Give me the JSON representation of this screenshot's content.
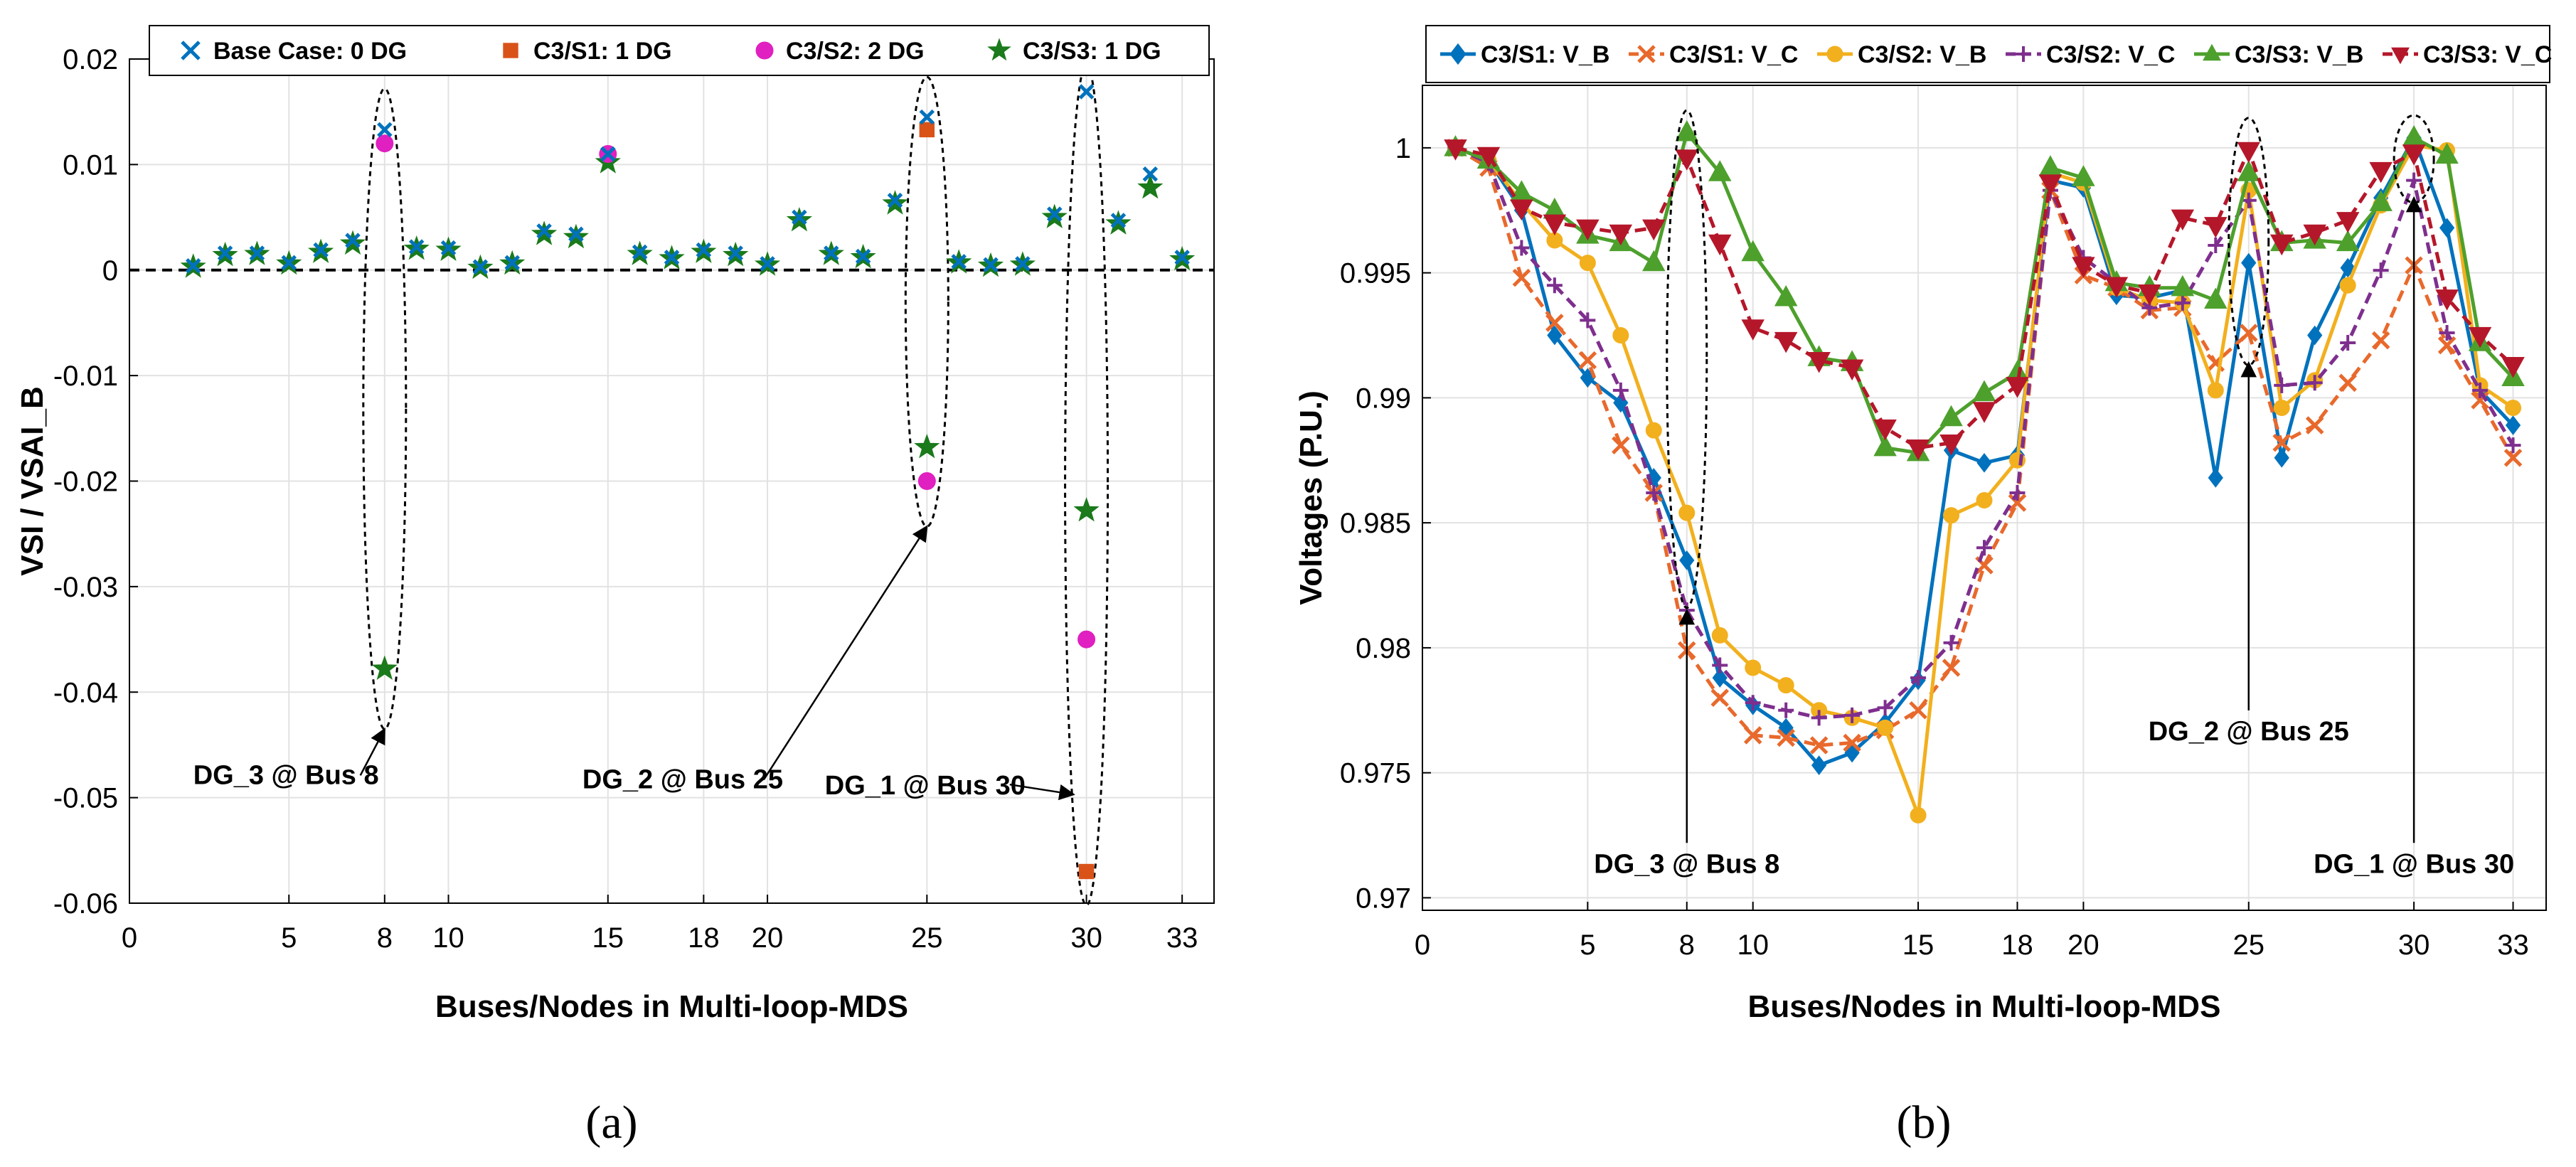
{
  "chart_data": [
    {
      "type": "scatter",
      "panel_caption": "(a)",
      "title": "",
      "xlabel": "Buses/Nodes in Multi-loop-MDS",
      "ylabel": "VSI / VSAI_B",
      "xlim": [
        0,
        34
      ],
      "ylim": [
        -0.06,
        0.02
      ],
      "xticks": [
        0,
        5,
        8,
        10,
        15,
        18,
        20,
        25,
        30,
        33
      ],
      "yticks": [
        -0.06,
        -0.05,
        -0.04,
        -0.03,
        -0.02,
        -0.01,
        0,
        0.01,
        0.02
      ],
      "ytick_labels": [
        "-0.06",
        "-0.05",
        "-0.04",
        "-0.03",
        "-0.02",
        "-0.01",
        "0",
        "0.01",
        "0.02"
      ],
      "grid": true,
      "legend_position": "top",
      "zero_line": true,
      "series": [
        {
          "name": "Base Case: 0 DG",
          "color": "#0072BD",
          "marker": "x",
          "x": [
            2,
            3,
            4,
            5,
            6,
            7,
            8,
            9,
            10,
            11,
            12,
            13,
            14,
            15,
            16,
            17,
            18,
            19,
            20,
            21,
            22,
            23,
            24,
            25,
            26,
            27,
            28,
            29,
            30,
            31,
            32,
            33
          ],
          "y": [
            0.0004,
            0.0016,
            0.0016,
            0.0007,
            0.0019,
            0.0028,
            0.0133,
            0.0022,
            0.0021,
            0.0003,
            0.0007,
            0.0037,
            0.0034,
            0.011,
            0.0017,
            0.0012,
            0.0019,
            0.0016,
            0.0006,
            0.005,
            0.0016,
            0.0013,
            0.0066,
            0.0145,
            0.0008,
            0.0005,
            0.0006,
            0.0053,
            0.0169,
            0.0047,
            0.0091,
            0.0012
          ]
        },
        {
          "name": "C3/S1: 1 DG",
          "color": "#D95319",
          "marker": "square",
          "x": [
            25,
            30
          ],
          "y": [
            0.0133,
            -0.057
          ]
        },
        {
          "name": "C3/S2: 2 DG",
          "color": "#E020C0",
          "marker": "circle",
          "x": [
            8,
            15,
            25,
            30
          ],
          "y": [
            0.012,
            0.011,
            -0.02,
            -0.035
          ]
        },
        {
          "name": "C3/S3: 1 DG",
          "color": "#1B7A1B",
          "marker": "star",
          "x": [
            2,
            3,
            4,
            5,
            6,
            7,
            8,
            9,
            10,
            11,
            12,
            13,
            14,
            15,
            16,
            17,
            18,
            19,
            20,
            21,
            22,
            23,
            24,
            25,
            26,
            27,
            28,
            29,
            30,
            31,
            32,
            33
          ],
          "y": [
            0.0003,
            0.0014,
            0.0015,
            0.0006,
            0.0017,
            0.0025,
            -0.0378,
            0.002,
            0.0019,
            0.0002,
            0.0006,
            0.0034,
            0.0031,
            0.0102,
            0.0015,
            0.0011,
            0.0017,
            0.0014,
            0.0005,
            0.0047,
            0.0015,
            0.0012,
            0.0063,
            -0.0168,
            0.0007,
            0.0004,
            0.0005,
            0.005,
            -0.0228,
            0.0044,
            0.0078,
            0.001
          ]
        }
      ],
      "annotations": [
        {
          "text": "DG_3 @ Bus 8",
          "target_x": 8,
          "target_y": -0.0435,
          "label_x": 2.0,
          "label_y": -0.0487
        },
        {
          "text": "DG_2 @ Bus 25",
          "target_x": 25,
          "target_y": -0.0243,
          "label_x": 14.2,
          "label_y": -0.0491
        },
        {
          "text": "DG_1 @ Bus 30",
          "target_x": 29.6,
          "target_y": -0.0497,
          "label_x": 21.8,
          "label_y": -0.0497
        }
      ],
      "highlight_ellipses": [
        {
          "x": 8,
          "y_top": 0.0172,
          "y_bottom": -0.0435
        },
        {
          "x": 25,
          "y_top": 0.0183,
          "y_bottom": -0.0243
        },
        {
          "x": 30,
          "y_top": 0.0195,
          "y_bottom": -0.0602
        }
      ]
    },
    {
      "type": "line",
      "panel_caption": "(b)",
      "title": "",
      "xlabel": "Buses/Nodes in Multi-loop-MDS",
      "ylabel": "Voltages (P.U.)",
      "xlim": [
        0,
        34
      ],
      "ylim": [
        0.9695,
        1.0025
      ],
      "xticks": [
        0,
        5,
        8,
        10,
        15,
        18,
        20,
        25,
        30,
        33
      ],
      "yticks": [
        0.97,
        0.975,
        0.98,
        0.985,
        0.99,
        0.995,
        1
      ],
      "ytick_labels": [
        "0.97",
        "0.975",
        "0.98",
        "0.985",
        "0.99",
        "0.995",
        "1"
      ],
      "grid": true,
      "legend_position": "top",
      "series": [
        {
          "name": "C3/S1: V_B",
          "color": "#0072BD",
          "marker": "diamond",
          "dash": "solid",
          "x": [
            1,
            2,
            3,
            4,
            5,
            6,
            7,
            8,
            9,
            10,
            11,
            12,
            13,
            14,
            15,
            16,
            17,
            18,
            19,
            20,
            21,
            22,
            23,
            24,
            25,
            26,
            27,
            28,
            29,
            30,
            31,
            32,
            33
          ],
          "y": [
            1.0,
            0.9995,
            0.9975,
            0.9925,
            0.9908,
            0.9898,
            0.9868,
            0.9835,
            0.9788,
            0.9777,
            0.9768,
            0.9753,
            0.9758,
            0.977,
            0.9787,
            0.9879,
            0.9874,
            0.9877,
            0.9987,
            0.9984,
            0.9941,
            0.994,
            0.9943,
            0.9868,
            0.9954,
            0.9876,
            0.9925,
            0.9952,
            0.998,
            1.0004,
            0.9968,
            0.9903,
            0.9889
          ]
        },
        {
          "name": "C3/S1: V_C",
          "color": "#E8692C",
          "marker": "x",
          "dash": "dash",
          "x": [
            1,
            2,
            3,
            4,
            5,
            6,
            7,
            8,
            9,
            10,
            11,
            12,
            13,
            14,
            15,
            16,
            17,
            18,
            19,
            20,
            21,
            22,
            23,
            24,
            25,
            26,
            27,
            28,
            29,
            30,
            31,
            32,
            33
          ],
          "y": [
            1.0,
            0.9992,
            0.9948,
            0.993,
            0.9915,
            0.9881,
            0.9862,
            0.9799,
            0.978,
            0.9765,
            0.9764,
            0.9761,
            0.9762,
            0.9767,
            0.9775,
            0.9792,
            0.9833,
            0.9858,
            0.9983,
            0.9949,
            0.9944,
            0.9935,
            0.9936,
            0.9914,
            0.9926,
            0.9882,
            0.9889,
            0.9906,
            0.9923,
            0.9953,
            0.9921,
            0.9899,
            0.9876
          ]
        },
        {
          "name": "C3/S2: V_B",
          "color": "#F2B01E",
          "marker": "circle",
          "dash": "solid",
          "x": [
            1,
            2,
            3,
            4,
            5,
            6,
            7,
            8,
            9,
            10,
            11,
            12,
            13,
            14,
            15,
            16,
            17,
            18,
            19,
            20,
            21,
            22,
            23,
            24,
            25,
            26,
            27,
            28,
            29,
            30,
            31,
            32,
            33
          ],
          "y": [
            1.0,
            0.9995,
            0.9978,
            0.9963,
            0.9954,
            0.9925,
            0.9887,
            0.9854,
            0.9805,
            0.9792,
            0.9785,
            0.9775,
            0.9772,
            0.9768,
            0.9733,
            0.9853,
            0.9859,
            0.9875,
            0.999,
            0.9986,
            0.9944,
            0.9939,
            0.9938,
            0.9903,
            0.9983,
            0.9896,
            0.9907,
            0.9945,
            0.9977,
            1.0001,
            0.9999,
            0.9905,
            0.9896
          ]
        },
        {
          "name": "C3/S2: V_C",
          "color": "#7E2F8E",
          "marker": "plus",
          "dash": "dash",
          "x": [
            1,
            2,
            3,
            4,
            5,
            6,
            7,
            8,
            9,
            10,
            11,
            12,
            13,
            14,
            15,
            16,
            17,
            18,
            19,
            20,
            21,
            22,
            23,
            24,
            25,
            26,
            27,
            28,
            29,
            30,
            31,
            32,
            33
          ],
          "y": [
            1.0,
            0.9994,
            0.996,
            0.9945,
            0.9931,
            0.9903,
            0.9862,
            0.9815,
            0.9793,
            0.9778,
            0.9775,
            0.9772,
            0.9773,
            0.9776,
            0.9788,
            0.9802,
            0.984,
            0.9862,
            0.9983,
            0.9956,
            0.9946,
            0.9936,
            0.9938,
            0.9961,
            0.9979,
            0.9905,
            0.9906,
            0.9922,
            0.9951,
            0.9987,
            0.9926,
            0.9903,
            0.9881
          ]
        },
        {
          "name": "C3/S3: V_B",
          "color": "#4DA02C",
          "marker": "triangle-up",
          "dash": "solid",
          "x": [
            1,
            2,
            3,
            4,
            5,
            6,
            7,
            8,
            9,
            10,
            11,
            12,
            13,
            14,
            15,
            16,
            17,
            18,
            19,
            20,
            21,
            22,
            23,
            24,
            25,
            26,
            27,
            28,
            29,
            30,
            31,
            32,
            33
          ],
          "y": [
            1.0,
            0.9995,
            0.9982,
            0.9975,
            0.9965,
            0.9962,
            0.9954,
            1.0006,
            0.999,
            0.9958,
            0.994,
            0.9916,
            0.9914,
            0.988,
            0.9878,
            0.9892,
            0.9902,
            0.991,
            0.9992,
            0.9988,
            0.9946,
            0.9944,
            0.9944,
            0.9939,
            0.999,
            0.9962,
            0.9963,
            0.9962,
            0.9978,
            1.0004,
            0.9997,
            0.9922,
            0.9908
          ]
        },
        {
          "name": "C3/S3: V_C",
          "color": "#B5172A",
          "marker": "triangle-down",
          "dash": "dash",
          "x": [
            1,
            2,
            3,
            4,
            5,
            6,
            7,
            8,
            9,
            10,
            11,
            12,
            13,
            14,
            15,
            16,
            17,
            18,
            19,
            20,
            21,
            22,
            23,
            24,
            25,
            26,
            27,
            28,
            29,
            30,
            31,
            32,
            33
          ],
          "y": [
            1.0,
            0.9997,
            0.9976,
            0.997,
            0.9968,
            0.9966,
            0.9968,
            0.9996,
            0.9962,
            0.9928,
            0.9923,
            0.9915,
            0.9912,
            0.9888,
            0.988,
            0.9882,
            0.9895,
            0.9905,
            0.9986,
            0.9953,
            0.9945,
            0.9942,
            0.9972,
            0.9969,
            0.9999,
            0.9962,
            0.9966,
            0.9971,
            0.9991,
            0.9998,
            0.994,
            0.9925,
            0.9913
          ]
        }
      ],
      "annotations": [
        {
          "text": "DG_3 @ Bus 8",
          "target_x": 8,
          "target_y": 0.9815,
          "label_x": 8,
          "label_y": 0.971
        },
        {
          "text": "DG_2 @ Bus 25",
          "target_x": 25,
          "target_y": 0.9914,
          "label_x": 25,
          "label_y": 0.9763
        },
        {
          "text": "DG_1 @ Bus 30",
          "target_x": 30,
          "target_y": 0.998,
          "label_x": 30,
          "label_y": 0.971
        }
      ],
      "highlight_ellipses": [
        {
          "x": 8,
          "y_top": 1.0015,
          "y_bottom": 0.9816
        },
        {
          "x": 25,
          "y_top": 1.0012,
          "y_bottom": 0.9913
        },
        {
          "x": 30,
          "y_top": 1.0013,
          "y_bottom": 0.9978
        }
      ]
    }
  ]
}
